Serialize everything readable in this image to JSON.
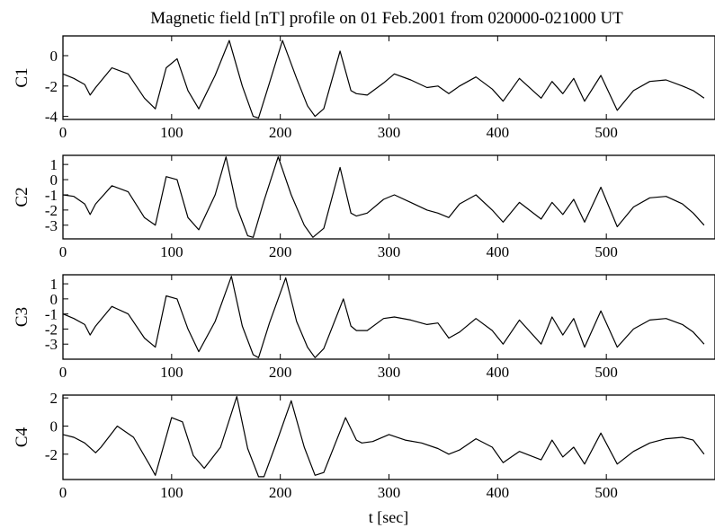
{
  "title": "Magnetic field [nT] profile on 01 Feb.2001 from 020000-021000 UT",
  "xlabel": "t [sec]",
  "chart_data": [
    {
      "type": "line",
      "ylabel": "C1",
      "xlim": [
        0,
        600
      ],
      "ylim": [
        -4.2,
        1.3
      ],
      "xticks": [
        0,
        100,
        200,
        300,
        400,
        500
      ],
      "yticks": [
        -4,
        -2,
        0
      ],
      "series": [
        {
          "x": [
            0,
            10,
            20,
            25,
            30,
            45,
            60,
            75,
            85,
            95,
            105,
            115,
            125,
            140,
            153,
            165,
            175,
            180,
            190,
            202,
            215,
            225,
            232,
            240,
            255,
            265,
            270,
            280,
            295,
            305,
            320,
            335,
            345,
            355,
            365,
            380,
            395,
            405,
            420,
            440,
            450,
            460,
            470,
            480,
            495,
            510,
            525,
            540,
            555,
            570,
            580,
            590
          ],
          "y": [
            -1.2,
            -1.5,
            -1.9,
            -2.6,
            -2.1,
            -0.8,
            -1.2,
            -2.8,
            -3.5,
            -0.8,
            -0.2,
            -2.3,
            -3.5,
            -1.3,
            1.0,
            -2.0,
            -4.0,
            -4.1,
            -1.8,
            1.0,
            -1.5,
            -3.3,
            -4.0,
            -3.5,
            0.3,
            -2.3,
            -2.5,
            -2.6,
            -1.8,
            -1.2,
            -1.6,
            -2.1,
            -2.0,
            -2.5,
            -2.0,
            -1.4,
            -2.2,
            -3.0,
            -1.5,
            -2.8,
            -1.7,
            -2.5,
            -1.5,
            -3.0,
            -1.3,
            -3.6,
            -2.3,
            -1.7,
            -1.6,
            -2.0,
            -2.3,
            -2.8
          ]
        }
      ]
    },
    {
      "type": "line",
      "ylabel": "C2",
      "xlim": [
        0,
        600
      ],
      "ylim": [
        -3.9,
        1.6
      ],
      "xticks": [
        0,
        100,
        200,
        300,
        400,
        500
      ],
      "yticks": [
        -3,
        -2,
        -1,
        0,
        1
      ],
      "series": [
        {
          "x": [
            0,
            10,
            20,
            25,
            30,
            45,
            60,
            75,
            85,
            95,
            105,
            115,
            125,
            140,
            150,
            160,
            170,
            175,
            185,
            198,
            210,
            222,
            230,
            240,
            255,
            265,
            270,
            280,
            295,
            305,
            320,
            335,
            345,
            355,
            365,
            380,
            395,
            405,
            420,
            440,
            450,
            460,
            470,
            480,
            495,
            510,
            525,
            540,
            555,
            570,
            580,
            590
          ],
          "y": [
            -1.0,
            -1.1,
            -1.6,
            -2.3,
            -1.6,
            -0.4,
            -0.8,
            -2.5,
            -3.0,
            0.2,
            0.0,
            -2.5,
            -3.3,
            -1.0,
            1.5,
            -1.8,
            -3.7,
            -3.8,
            -1.4,
            1.5,
            -1.0,
            -3.0,
            -3.8,
            -3.2,
            0.8,
            -2.2,
            -2.4,
            -2.2,
            -1.3,
            -1.0,
            -1.5,
            -2.0,
            -2.2,
            -2.5,
            -1.6,
            -1.0,
            -2.0,
            -2.8,
            -1.5,
            -2.6,
            -1.5,
            -2.3,
            -1.3,
            -2.8,
            -0.5,
            -3.1,
            -1.8,
            -1.2,
            -1.1,
            -1.6,
            -2.2,
            -3.0
          ]
        }
      ]
    },
    {
      "type": "line",
      "ylabel": "C3",
      "xlim": [
        0,
        600
      ],
      "ylim": [
        -4.0,
        1.6
      ],
      "xticks": [
        0,
        100,
        200,
        300,
        400,
        500
      ],
      "yticks": [
        -3,
        -2,
        -1,
        0,
        1
      ],
      "series": [
        {
          "x": [
            0,
            10,
            20,
            25,
            30,
            45,
            60,
            75,
            85,
            95,
            105,
            115,
            125,
            140,
            155,
            165,
            175,
            180,
            190,
            205,
            215,
            225,
            232,
            240,
            258,
            265,
            270,
            280,
            295,
            305,
            320,
            335,
            345,
            355,
            365,
            380,
            395,
            405,
            420,
            440,
            450,
            460,
            470,
            480,
            495,
            510,
            525,
            540,
            555,
            570,
            580,
            590
          ],
          "y": [
            -1.0,
            -1.3,
            -1.7,
            -2.4,
            -1.8,
            -0.5,
            -1.0,
            -2.6,
            -3.2,
            0.2,
            0.0,
            -2.0,
            -3.5,
            -1.5,
            1.5,
            -1.8,
            -3.7,
            -3.9,
            -1.6,
            1.4,
            -1.5,
            -3.2,
            -3.9,
            -3.3,
            0.0,
            -1.8,
            -2.1,
            -2.1,
            -1.3,
            -1.2,
            -1.4,
            -1.7,
            -1.6,
            -2.6,
            -2.2,
            -1.3,
            -2.1,
            -3.0,
            -1.4,
            -3.0,
            -1.2,
            -2.4,
            -1.3,
            -3.2,
            -0.8,
            -3.2,
            -2.0,
            -1.4,
            -1.3,
            -1.7,
            -2.2,
            -3.0
          ]
        }
      ]
    },
    {
      "type": "line",
      "ylabel": "C4",
      "xlim": [
        0,
        600
      ],
      "ylim": [
        -3.8,
        2.2
      ],
      "xticks": [
        0,
        100,
        200,
        300,
        400,
        500
      ],
      "yticks": [
        -2,
        0,
        2
      ],
      "series": [
        {
          "x": [
            0,
            10,
            20,
            30,
            35,
            50,
            65,
            80,
            85,
            100,
            110,
            120,
            130,
            145,
            160,
            170,
            180,
            185,
            195,
            210,
            222,
            232,
            240,
            260,
            270,
            275,
            285,
            300,
            315,
            330,
            345,
            355,
            365,
            380,
            395,
            405,
            420,
            440,
            450,
            460,
            470,
            480,
            495,
            510,
            525,
            540,
            555,
            570,
            580,
            590
          ],
          "y": [
            -0.6,
            -0.8,
            -1.2,
            -1.9,
            -1.5,
            0.0,
            -0.8,
            -2.8,
            -3.5,
            0.6,
            0.3,
            -2.1,
            -3.0,
            -1.5,
            2.1,
            -1.6,
            -3.6,
            -3.6,
            -1.5,
            1.8,
            -1.5,
            -3.5,
            -3.3,
            0.6,
            -1.0,
            -1.2,
            -1.1,
            -0.6,
            -1.0,
            -1.2,
            -1.6,
            -2.0,
            -1.7,
            -0.9,
            -1.5,
            -2.6,
            -1.8,
            -2.4,
            -1.0,
            -2.2,
            -1.5,
            -2.7,
            -0.5,
            -2.7,
            -1.8,
            -1.2,
            -0.9,
            -0.8,
            -1.0,
            -2.0
          ]
        }
      ]
    }
  ]
}
